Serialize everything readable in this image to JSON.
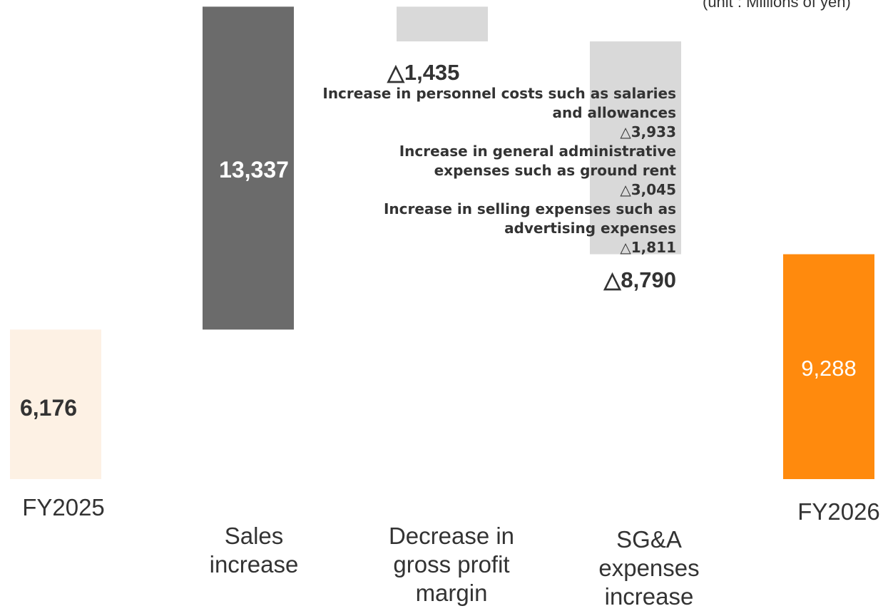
{
  "unit_label": "(unit : Millions of yen)",
  "chart_data": {
    "type": "waterfall",
    "categories": [
      "FY2025",
      "Sales\nincrease",
      "Decrease in\ngross profit\nmargin",
      "SG&A\nexpenses\nincrease",
      "FY2026"
    ],
    "values": [
      6176,
      13337,
      -1435,
      -8790,
      9288
    ],
    "value_labels": [
      "6,176",
      "13,337",
      "△1,435",
      "△8,790",
      "9,288"
    ],
    "kinds": [
      "total",
      "increase",
      "decrease",
      "decrease",
      "total"
    ],
    "colors": {
      "start_total": "#fdf1e4",
      "increase": "#6b6b6b",
      "decrease": "#d9d9d9",
      "end_total": "#ff8a0d",
      "text": "#333333",
      "label_light": "#ffffff"
    },
    "sga_breakdown": [
      {
        "label": "Increase in personnel costs such as salaries and allowances",
        "value": "△3,933"
      },
      {
        "label": "Increase in general administrative expenses such as ground rent",
        "value": "△3,045"
      },
      {
        "label": "Increase in selling expenses such as advertising expenses",
        "value": "△1,811"
      }
    ],
    "sga_total": "△8,790",
    "gross_margin_label": "△1,435"
  }
}
